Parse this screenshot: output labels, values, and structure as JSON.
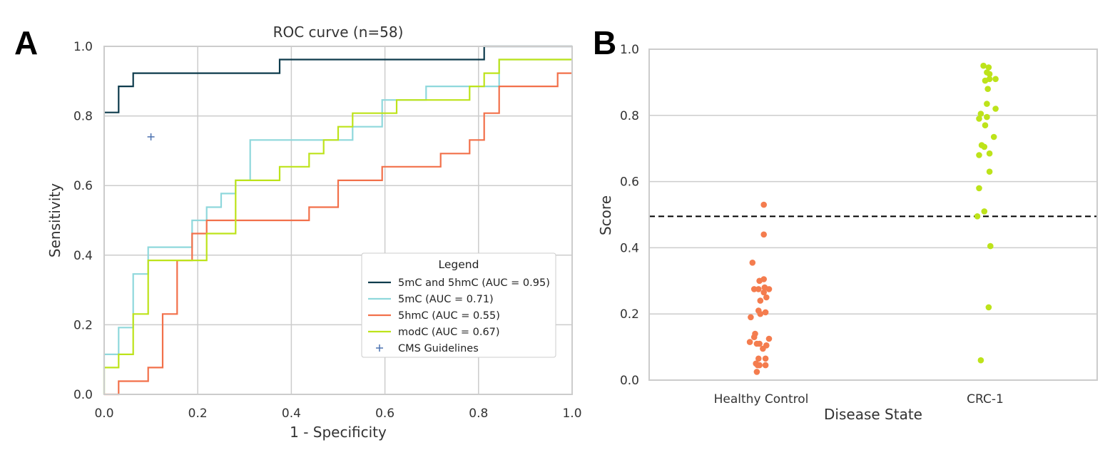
{
  "panels": {
    "a_letter": "A",
    "b_letter": "B"
  },
  "chart_data": [
    {
      "type": "line",
      "title": "ROC curve (n=58)",
      "xlabel": "1 - Specificity",
      "ylabel": "Sensitivity",
      "xlim": [
        0,
        1
      ],
      "ylim": [
        0,
        1
      ],
      "xticks": [
        "0.0",
        "0.2",
        "0.4",
        "0.6",
        "0.8",
        "1.0"
      ],
      "yticks": [
        "0.0",
        "0.2",
        "0.4",
        "0.6",
        "0.8",
        "1.0"
      ],
      "grid": true,
      "legend": {
        "title": "Legend",
        "position": "lower-right"
      },
      "series": [
        {
          "name": "5mC and 5hmC (AUC = 0.95)",
          "color": "#0d3b4c",
          "points": [
            [
              0,
              0.81
            ],
            [
              0.031,
              0.81
            ],
            [
              0.031,
              0.885
            ],
            [
              0.062,
              0.885
            ],
            [
              0.062,
              0.923
            ],
            [
              0.375,
              0.923
            ],
            [
              0.375,
              0.962
            ],
            [
              0.812,
              0.962
            ],
            [
              0.812,
              1.0
            ],
            [
              1.0,
              1.0
            ]
          ]
        },
        {
          "name": "5mC (AUC = 0.71)",
          "color": "#8fd8dc",
          "points": [
            [
              0,
              0
            ],
            [
              0,
              0.115
            ],
            [
              0.031,
              0.115
            ],
            [
              0.031,
              0.192
            ],
            [
              0.062,
              0.192
            ],
            [
              0.062,
              0.346
            ],
            [
              0.094,
              0.346
            ],
            [
              0.094,
              0.423
            ],
            [
              0.188,
              0.423
            ],
            [
              0.188,
              0.5
            ],
            [
              0.219,
              0.5
            ],
            [
              0.219,
              0.538
            ],
            [
              0.25,
              0.538
            ],
            [
              0.25,
              0.577
            ],
            [
              0.281,
              0.577
            ],
            [
              0.281,
              0.615
            ],
            [
              0.312,
              0.615
            ],
            [
              0.312,
              0.731
            ],
            [
              0.531,
              0.731
            ],
            [
              0.531,
              0.769
            ],
            [
              0.594,
              0.769
            ],
            [
              0.594,
              0.846
            ],
            [
              0.688,
              0.846
            ],
            [
              0.688,
              0.885
            ],
            [
              0.844,
              0.885
            ],
            [
              0.844,
              0.962
            ],
            [
              1.0,
              0.962
            ]
          ]
        },
        {
          "name": "5hmC (AUC = 0.55)",
          "color": "#f2704a",
          "points": [
            [
              0,
              0
            ],
            [
              0.031,
              0
            ],
            [
              0.031,
              0.038
            ],
            [
              0.094,
              0.038
            ],
            [
              0.094,
              0.077
            ],
            [
              0.125,
              0.077
            ],
            [
              0.125,
              0.231
            ],
            [
              0.156,
              0.231
            ],
            [
              0.156,
              0.385
            ],
            [
              0.188,
              0.385
            ],
            [
              0.188,
              0.462
            ],
            [
              0.219,
              0.462
            ],
            [
              0.219,
              0.5
            ],
            [
              0.438,
              0.5
            ],
            [
              0.438,
              0.538
            ],
            [
              0.5,
              0.538
            ],
            [
              0.5,
              0.615
            ],
            [
              0.594,
              0.615
            ],
            [
              0.594,
              0.654
            ],
            [
              0.719,
              0.654
            ],
            [
              0.719,
              0.692
            ],
            [
              0.781,
              0.692
            ],
            [
              0.781,
              0.731
            ],
            [
              0.812,
              0.731
            ],
            [
              0.812,
              0.808
            ],
            [
              0.844,
              0.808
            ],
            [
              0.844,
              0.885
            ],
            [
              0.969,
              0.885
            ],
            [
              0.969,
              0.923
            ],
            [
              1.0,
              0.923
            ]
          ]
        },
        {
          "name": "modC (AUC = 0.67)",
          "color": "#bde31a",
          "points": [
            [
              0,
              0
            ],
            [
              0,
              0.077
            ],
            [
              0.031,
              0.077
            ],
            [
              0.031,
              0.115
            ],
            [
              0.062,
              0.115
            ],
            [
              0.062,
              0.231
            ],
            [
              0.094,
              0.231
            ],
            [
              0.094,
              0.385
            ],
            [
              0.219,
              0.385
            ],
            [
              0.219,
              0.462
            ],
            [
              0.281,
              0.462
            ],
            [
              0.281,
              0.615
            ],
            [
              0.375,
              0.615
            ],
            [
              0.375,
              0.654
            ],
            [
              0.438,
              0.654
            ],
            [
              0.438,
              0.692
            ],
            [
              0.469,
              0.692
            ],
            [
              0.469,
              0.731
            ],
            [
              0.5,
              0.731
            ],
            [
              0.5,
              0.769
            ],
            [
              0.531,
              0.769
            ],
            [
              0.531,
              0.808
            ],
            [
              0.625,
              0.808
            ],
            [
              0.625,
              0.846
            ],
            [
              0.781,
              0.846
            ],
            [
              0.781,
              0.885
            ],
            [
              0.812,
              0.885
            ],
            [
              0.812,
              0.923
            ],
            [
              0.844,
              0.923
            ],
            [
              0.844,
              0.962
            ],
            [
              1.0,
              0.962
            ]
          ]
        }
      ],
      "markers": [
        {
          "name": "CMS Guidelines",
          "x": 0.1,
          "y": 0.74,
          "color": "#4c72b0",
          "symbol": "+"
        }
      ]
    },
    {
      "type": "scatter",
      "xlabel": "Disease State",
      "ylabel": "Score",
      "ylim": [
        0,
        1
      ],
      "yticks": [
        "0.0",
        "0.2",
        "0.4",
        "0.6",
        "0.8",
        "1.0"
      ],
      "categories": [
        "Healthy Control",
        "CRC-1"
      ],
      "threshold": 0.495,
      "grid": true,
      "series": [
        {
          "name": "Healthy Control",
          "color": "#f47c4e",
          "points": [
            [
              0.03,
              0.53
            ],
            [
              0.03,
              0.44
            ],
            [
              -0.1,
              0.355
            ],
            [
              -0.02,
              0.3
            ],
            [
              0.03,
              0.305
            ],
            [
              -0.08,
              0.275
            ],
            [
              -0.03,
              0.275
            ],
            [
              0.04,
              0.28
            ],
            [
              0.09,
              0.275
            ],
            [
              0.03,
              0.265
            ],
            [
              0.06,
              0.25
            ],
            [
              -0.01,
              0.24
            ],
            [
              -0.03,
              0.21
            ],
            [
              0.05,
              0.205
            ],
            [
              -0.12,
              0.19
            ],
            [
              -0.01,
              0.2
            ],
            [
              -0.07,
              0.14
            ],
            [
              -0.08,
              0.13
            ],
            [
              0.09,
              0.125
            ],
            [
              -0.13,
              0.115
            ],
            [
              -0.05,
              0.11
            ],
            [
              -0.02,
              0.11
            ],
            [
              0.06,
              0.105
            ],
            [
              0.02,
              0.095
            ],
            [
              -0.03,
              0.065
            ],
            [
              0.05,
              0.065
            ],
            [
              -0.06,
              0.05
            ],
            [
              -0.04,
              0.045
            ],
            [
              -0.02,
              0.045
            ],
            [
              0.05,
              0.045
            ],
            [
              -0.05,
              0.025
            ]
          ]
        },
        {
          "name": "CRC-1",
          "color": "#bde31a",
          "points": [
            [
              -0.02,
              0.95
            ],
            [
              0.04,
              0.945
            ],
            [
              0.02,
              0.93
            ],
            [
              0.05,
              0.925
            ],
            [
              0.12,
              0.91
            ],
            [
              0.05,
              0.91
            ],
            [
              0.0,
              0.905
            ],
            [
              0.03,
              0.88
            ],
            [
              0.02,
              0.835
            ],
            [
              0.12,
              0.82
            ],
            [
              -0.05,
              0.805
            ],
            [
              0.02,
              0.795
            ],
            [
              -0.07,
              0.79
            ],
            [
              0.0,
              0.77
            ],
            [
              0.1,
              0.735
            ],
            [
              -0.04,
              0.71
            ],
            [
              -0.01,
              0.705
            ],
            [
              0.05,
              0.685
            ],
            [
              -0.07,
              0.68
            ],
            [
              0.05,
              0.63
            ],
            [
              -0.07,
              0.58
            ],
            [
              -0.01,
              0.51
            ],
            [
              -0.09,
              0.495
            ],
            [
              0.06,
              0.405
            ],
            [
              0.04,
              0.22
            ],
            [
              -0.05,
              0.06
            ]
          ]
        }
      ]
    }
  ]
}
